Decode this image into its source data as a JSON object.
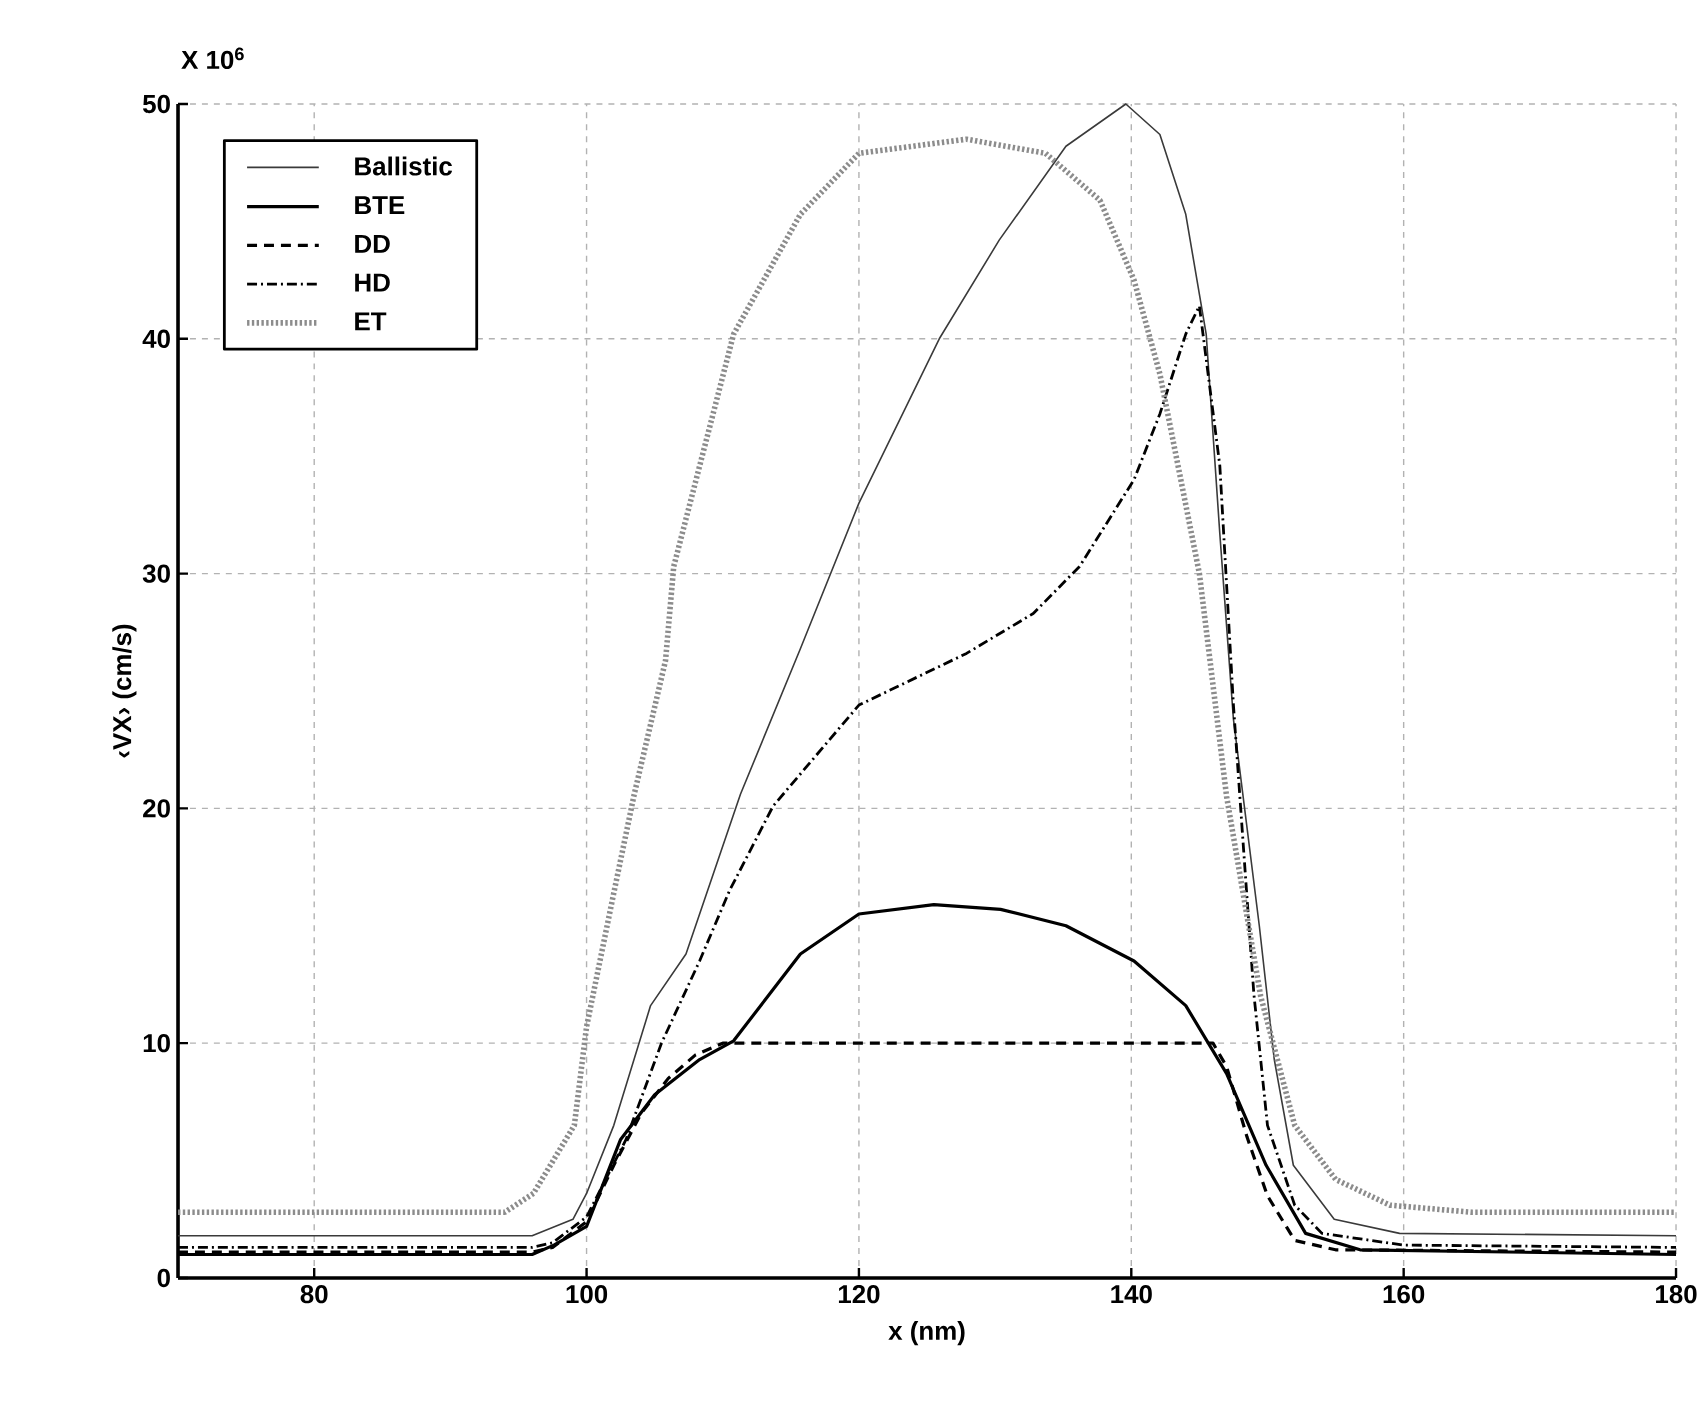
{
  "chart_data": {
    "type": "line",
    "xlabel": "x (nm)",
    "ylabel": "‹VX› (cm/s)",
    "annotations": [
      "X 10$^{6}$"
    ],
    "xlim": [
      70,
      180
    ],
    "ylim": [
      0,
      50
    ],
    "xticks": [
      80,
      100,
      120,
      140,
      160,
      180
    ],
    "yticks": [
      0,
      10,
      20,
      30,
      40,
      50
    ],
    "grid": true,
    "legend": "top left",
    "series": [
      {
        "name": "Ballistic",
        "color": "#3a3a3a",
        "line_style": "solid",
        "x": [
          70,
          96,
          99,
          100,
          102,
          104.7,
          107.3,
          111.3,
          115.7,
          120,
          125.9,
          130.3,
          135.2,
          139.6,
          142.1,
          144,
          145.5,
          146.5,
          147.5,
          149.4,
          150.5,
          151.9,
          154.9,
          159.7,
          180
        ],
        "values": [
          1.8,
          1.8,
          2.5,
          3.6,
          6.5,
          11.6,
          13.8,
          20.6,
          26.8,
          33,
          40,
          44.2,
          48.2,
          50,
          48.7,
          45.3,
          40.2,
          31.7,
          23.8,
          15,
          9.3,
          4.8,
          2.5,
          1.9,
          1.8
        ]
      },
      {
        "name": "BTE",
        "color": "#000000",
        "line_style": "solid",
        "x": [
          70,
          96,
          97.6,
          100,
          102.5,
          105,
          108.3,
          110.8,
          115.7,
          120,
          125.5,
          130.4,
          135.2,
          140.2,
          144,
          147,
          149.9,
          152.8,
          156.8,
          180
        ],
        "values": [
          1,
          1,
          1.4,
          2.2,
          5.9,
          7.8,
          9.3,
          10.1,
          13.8,
          15.5,
          15.9,
          15.7,
          15,
          13.5,
          11.6,
          8.7,
          4.8,
          1.9,
          1.2,
          1
        ]
      },
      {
        "name": "DD",
        "color": "#000000",
        "line_style": "dashed",
        "x": [
          70,
          96,
          97.5,
          100,
          102,
          104,
          106,
          108,
          110,
          120,
          130,
          140,
          146,
          147,
          148.5,
          150,
          152,
          155,
          180
        ],
        "values": [
          1.1,
          1.1,
          1.3,
          2.4,
          4.8,
          7,
          8.5,
          9.5,
          10,
          10,
          10,
          10,
          10,
          9,
          6,
          3.5,
          1.6,
          1.2,
          1.1
        ]
      },
      {
        "name": "HD",
        "color": "#000000",
        "line_style": "dashdot",
        "x": [
          70,
          96,
          97.5,
          100,
          102.9,
          105.5,
          108.3,
          110.5,
          113.7,
          120,
          127.9,
          132.8,
          136.2,
          140.2,
          142.1,
          144,
          145,
          146.5,
          147.5,
          148.3,
          149,
          150,
          152,
          154,
          160,
          180
        ],
        "values": [
          1.3,
          1.3,
          1.5,
          2.6,
          5.9,
          10,
          13.5,
          16.5,
          20.1,
          24.4,
          26.6,
          28.3,
          30.3,
          34,
          36.8,
          40.2,
          41.4,
          34.6,
          24.4,
          17.8,
          12.1,
          6.5,
          3.1,
          1.9,
          1.4,
          1.3
        ]
      },
      {
        "name": "ET",
        "color": "#8c8c8c",
        "line_style": "dotted",
        "x": [
          70,
          94,
          96.1,
          99.1,
          100,
          102,
          103.5,
          105.8,
          106.4,
          110.8,
          115.7,
          120,
          127.9,
          133.7,
          137.7,
          140.2,
          142.1,
          145,
          147,
          149.5,
          152,
          155,
          159,
          165,
          180
        ],
        "values": [
          2.8,
          2.8,
          3.6,
          6.5,
          10.7,
          16.4,
          20.6,
          26.3,
          30.3,
          40.2,
          45.3,
          47.9,
          48.5,
          47.9,
          45.9,
          42.5,
          38.5,
          30,
          20.5,
          12,
          6.5,
          4.2,
          3.1,
          2.8,
          2.8
        ]
      }
    ]
  }
}
